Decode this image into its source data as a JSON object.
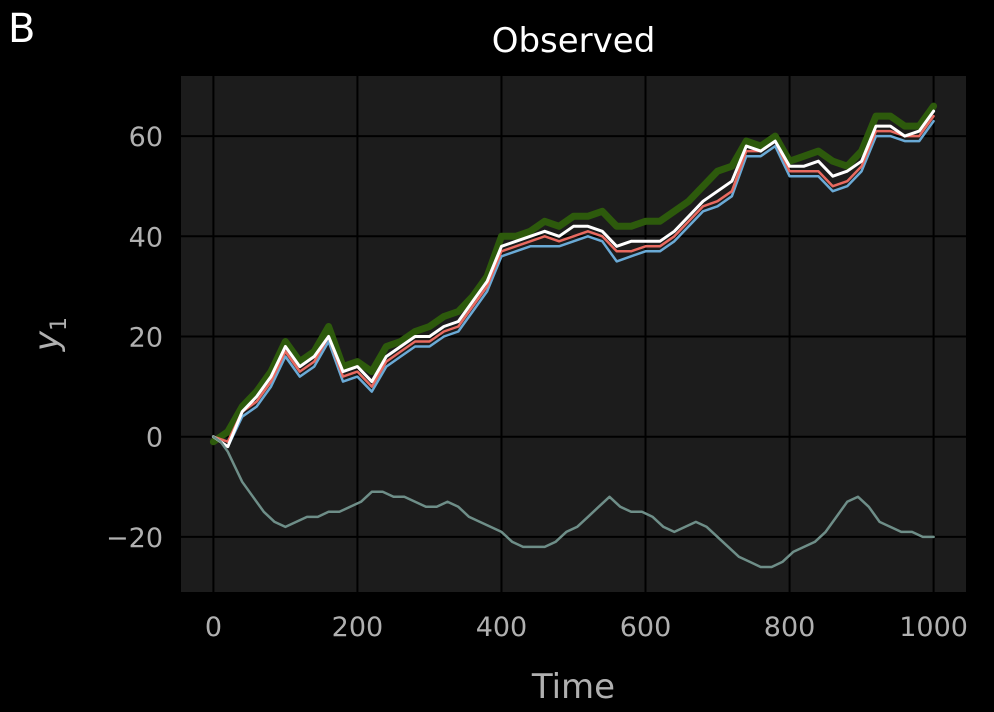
{
  "panel_letter": "B",
  "colors": {
    "background": "#000000",
    "plot_background": "#1c1c1c",
    "grid": "#000000",
    "text": "#b0b0b0",
    "title": "#ffffff"
  },
  "chart_data": {
    "type": "line",
    "title": "Observed",
    "xlabel": "Time",
    "ylabel": "y",
    "ylabel_subscript": "1",
    "xlim": [
      -45,
      1045
    ],
    "ylim": [
      -31,
      72
    ],
    "xticks": [
      0,
      200,
      400,
      600,
      800,
      1000
    ],
    "xtick_labels": [
      "0",
      "200",
      "400",
      "600",
      "800",
      "1000"
    ],
    "yticks": [
      -20,
      0,
      20,
      40,
      60
    ],
    "ytick_labels": [
      "−20",
      "0",
      "20",
      "40",
      "60"
    ],
    "grid": true,
    "series": [
      {
        "color": "#2d5a0c",
        "width": 7,
        "x": [
          0,
          20,
          40,
          60,
          80,
          100,
          120,
          140,
          160,
          180,
          200,
          220,
          240,
          260,
          280,
          300,
          320,
          340,
          360,
          380,
          400,
          420,
          440,
          460,
          480,
          500,
          520,
          540,
          560,
          580,
          600,
          620,
          640,
          660,
          680,
          700,
          720,
          740,
          760,
          780,
          800,
          820,
          840,
          860,
          880,
          900,
          920,
          940,
          960,
          980,
          1000
        ],
        "y": [
          -1,
          1,
          6,
          9,
          13,
          19,
          15,
          17,
          22,
          14,
          15,
          13,
          18,
          19,
          21,
          22,
          24,
          25,
          28,
          32,
          40,
          40,
          41,
          43,
          42,
          44,
          44,
          45,
          42,
          42,
          43,
          43,
          45,
          47,
          50,
          53,
          54,
          59,
          58,
          60,
          55,
          56,
          57,
          55,
          54,
          57,
          64,
          64,
          62,
          62,
          66
        ]
      },
      {
        "color": "#6aaad6",
        "width": 2.5,
        "x": [
          0,
          20,
          40,
          60,
          80,
          100,
          120,
          140,
          160,
          180,
          200,
          220,
          240,
          260,
          280,
          300,
          320,
          340,
          360,
          380,
          400,
          420,
          440,
          460,
          480,
          500,
          520,
          540,
          560,
          580,
          600,
          620,
          640,
          660,
          680,
          700,
          720,
          740,
          760,
          780,
          800,
          820,
          840,
          860,
          880,
          900,
          920,
          940,
          960,
          980,
          1000
        ],
        "y": [
          0,
          -2,
          4,
          6,
          10,
          16,
          12,
          14,
          19,
          11,
          12,
          9,
          14,
          16,
          18,
          18,
          20,
          21,
          25,
          29,
          36,
          37,
          38,
          38,
          38,
          39,
          40,
          39,
          35,
          36,
          37,
          37,
          39,
          42,
          45,
          46,
          48,
          56,
          56,
          58,
          52,
          52,
          52,
          49,
          50,
          53,
          60,
          60,
          59,
          59,
          63
        ]
      },
      {
        "color": "#e86a60",
        "width": 2.5,
        "x": [
          0,
          20,
          40,
          60,
          80,
          100,
          120,
          140,
          160,
          180,
          200,
          220,
          240,
          260,
          280,
          300,
          320,
          340,
          360,
          380,
          400,
          420,
          440,
          460,
          480,
          500,
          520,
          540,
          560,
          580,
          600,
          620,
          640,
          660,
          680,
          700,
          720,
          740,
          760,
          780,
          800,
          820,
          840,
          860,
          880,
          900,
          920,
          940,
          960,
          980,
          1000
        ],
        "y": [
          0,
          -1,
          5,
          7,
          11,
          17,
          13,
          15,
          20,
          12,
          13,
          10,
          15,
          17,
          19,
          19,
          21,
          22,
          26,
          30,
          37,
          38,
          39,
          40,
          39,
          40,
          41,
          40,
          37,
          37,
          38,
          38,
          40,
          43,
          46,
          47,
          49,
          57,
          57,
          59,
          53,
          53,
          53,
          50,
          51,
          54,
          61,
          61,
          60,
          60,
          64
        ]
      },
      {
        "color": "#ffffff",
        "width": 3,
        "x": [
          0,
          20,
          40,
          60,
          80,
          100,
          120,
          140,
          160,
          180,
          200,
          220,
          240,
          260,
          280,
          300,
          320,
          340,
          360,
          380,
          400,
          420,
          440,
          460,
          480,
          500,
          520,
          540,
          560,
          580,
          600,
          620,
          640,
          660,
          680,
          700,
          720,
          740,
          760,
          780,
          800,
          820,
          840,
          860,
          880,
          900,
          920,
          940,
          960,
          980,
          1000
        ],
        "y": [
          0,
          -2,
          5,
          8,
          12,
          18,
          14,
          16,
          20,
          13,
          14,
          11,
          16,
          18,
          20,
          20,
          22,
          23,
          27,
          31,
          38,
          39,
          40,
          41,
          40,
          42,
          42,
          41,
          38,
          39,
          39,
          39,
          41,
          44,
          47,
          49,
          51,
          58,
          57,
          59,
          54,
          54,
          55,
          52,
          53,
          55,
          62,
          62,
          60,
          61,
          65
        ]
      },
      {
        "color": "#6e8e88",
        "width": 2.5,
        "x": [
          0,
          10,
          20,
          30,
          40,
          55,
          70,
          85,
          100,
          115,
          130,
          145,
          160,
          175,
          190,
          205,
          220,
          235,
          250,
          265,
          280,
          295,
          310,
          325,
          340,
          355,
          370,
          385,
          400,
          415,
          430,
          445,
          460,
          475,
          490,
          505,
          520,
          535,
          550,
          565,
          580,
          595,
          610,
          625,
          640,
          655,
          670,
          685,
          700,
          715,
          730,
          745,
          760,
          775,
          790,
          805,
          820,
          835,
          850,
          865,
          880,
          895,
          910,
          925,
          940,
          955,
          970,
          985,
          1000
        ],
        "y": [
          0,
          -1,
          -3,
          -6,
          -9,
          -12,
          -15,
          -17,
          -18,
          -17,
          -16,
          -16,
          -15,
          -15,
          -14,
          -13,
          -11,
          -11,
          -12,
          -12,
          -13,
          -14,
          -14,
          -13,
          -14,
          -16,
          -17,
          -18,
          -19,
          -21,
          -22,
          -22,
          -22,
          -21,
          -19,
          -18,
          -16,
          -14,
          -12,
          -14,
          -15,
          -15,
          -16,
          -18,
          -19,
          -18,
          -17,
          -18,
          -20,
          -22,
          -24,
          -25,
          -26,
          -26,
          -25,
          -23,
          -22,
          -21,
          -19,
          -16,
          -13,
          -12,
          -14,
          -17,
          -18,
          -19,
          -19,
          -20,
          -20
        ]
      }
    ]
  }
}
